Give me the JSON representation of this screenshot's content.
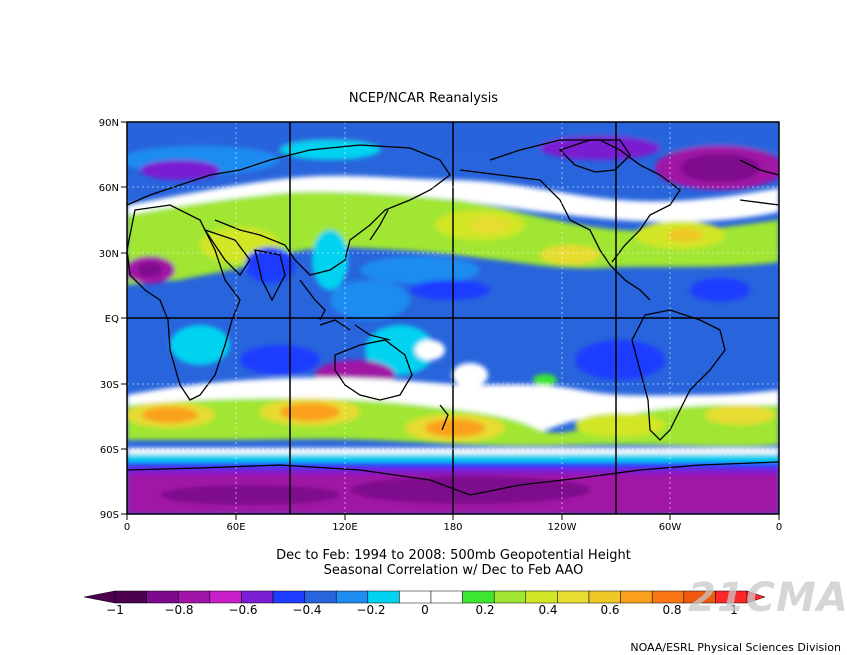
{
  "title": "NCEP/NCAR Reanalysis",
  "subtitle_line1": "Dec to Feb: 1994 to 2008: 500mb Geopotential Height",
  "subtitle_line2": "Seasonal Correlation w/ Dec to Feb AAO",
  "credit": "NOAA/ESRL Physical Sciences Division",
  "watermark": "21CMA",
  "lat_labels": [
    "90N",
    "60N",
    "30N",
    "EQ",
    "30S",
    "60S",
    "90S"
  ],
  "lon_labels": [
    "0",
    "60E",
    "120E",
    "180",
    "120W",
    "60W",
    "0"
  ],
  "colorbar": {
    "tick_labels": [
      "−1",
      "−0.8",
      "−0.6",
      "−0.4",
      "−0.2",
      "0",
      "0.2",
      "0.4",
      "0.6",
      "0.8",
      "1"
    ],
    "colors": [
      "#4b0050",
      "#7d0a8c",
      "#a015a5",
      "#c81ec8",
      "#7a1ed2",
      "#1e3cff",
      "#2864dc",
      "#1e8cf0",
      "#00d2f0",
      "#ffffff",
      "#ffffff",
      "#3ce632",
      "#a0e632",
      "#d2e628",
      "#e6dc32",
      "#f0c828",
      "#faa01e",
      "#fa7814",
      "#f05a0f",
      "#ff2828"
    ]
  },
  "map_colors": {
    "ocean_blue": "#2864dc",
    "deep_purple": "#7d0a8c",
    "band_green": "#a0e632",
    "band_yellow": "#e6dc32",
    "band_orange": "#faa01e",
    "white_zero": "#ffffff",
    "cyan": "#00d2f0"
  }
}
